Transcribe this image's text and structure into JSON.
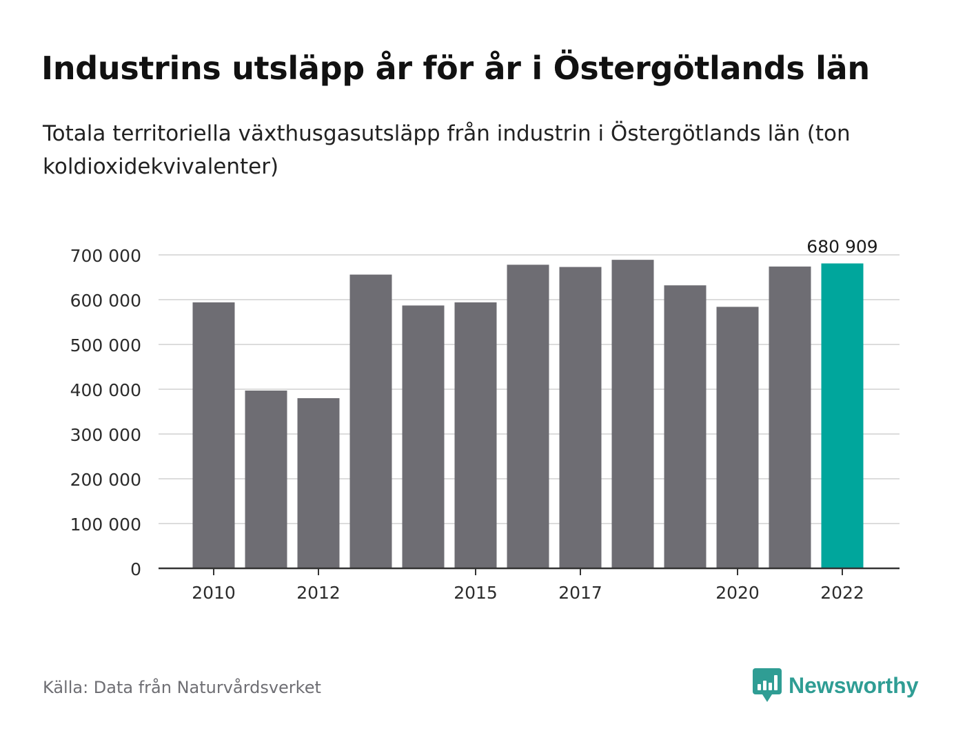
{
  "header": {
    "title": "Industrins utsläpp år för år i Östergötlands län",
    "subtitle": "Totala territoriella växthusgasutsläpp från industrin i Östergötlands län (ton koldioxidekvivalenter)"
  },
  "chart_data": {
    "type": "bar",
    "title": "Industrins utsläpp år för år i Östergötlands län",
    "subtitle": "Totala territoriella växthusgasutsläpp från industrin i Östergötlands län (ton koldioxidekvivalenter)",
    "xlabel": "",
    "ylabel": "",
    "categories": [
      2010,
      2011,
      2012,
      2013,
      2014,
      2015,
      2016,
      2017,
      2018,
      2019,
      2020,
      2021,
      2022
    ],
    "values": [
      594000,
      397000,
      380000,
      656000,
      587000,
      594000,
      678000,
      673000,
      689000,
      632000,
      584000,
      674000,
      680909
    ],
    "x_tick_labels": [
      "2010",
      "2012",
      "2015",
      "2017",
      "2020",
      "2022"
    ],
    "y_tick_labels": [
      "0",
      "100 000",
      "200 000",
      "300 000",
      "400 000",
      "500 000",
      "600 000",
      "700 000"
    ],
    "ylim": [
      0,
      700000
    ],
    "ytick_step": 100000,
    "grid": true,
    "highlight_index": 12,
    "annotation": {
      "index": 12,
      "text": "680 909"
    },
    "colors": {
      "bar": "#6e6d73",
      "highlight": "#00a69c",
      "grid": "#dcdcdc",
      "axis": "#333333"
    }
  },
  "footer": {
    "source": "Källa: Data från Naturvårdsverket",
    "brand_name": "Newsworthy",
    "brand_icon": "bar-chart-speech-bubble-icon",
    "brand_color": "#2f9d94"
  }
}
